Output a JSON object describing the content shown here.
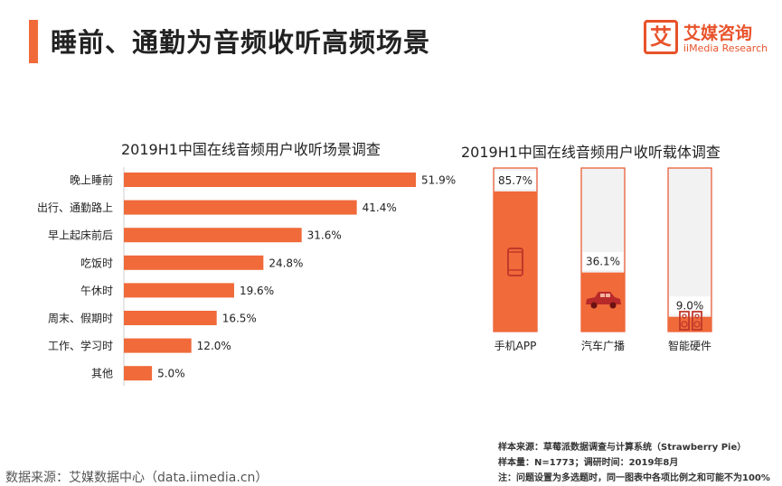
{
  "header": {
    "title": "睡前、通勤为音频收听高频场景",
    "logo_mark": "艾",
    "logo_cn": "艾媒咨询",
    "logo_en": "iiMedia Research"
  },
  "colors": {
    "accent": "#f06a3a",
    "bar_track": "#f2f2f2",
    "bar_border": "#e8522a"
  },
  "chart_data": [
    {
      "type": "bar",
      "orientation": "horizontal",
      "title": "2019H1中国在线音频用户收听场景调查",
      "categories": [
        "晚上睡前",
        "出行、通勤路上",
        "早上起床前后",
        "吃饭时",
        "午休时",
        "周末、假期时",
        "工作、学习时",
        "其他"
      ],
      "values": [
        51.9,
        41.4,
        31.6,
        24.8,
        19.6,
        16.5,
        12.0,
        5.0
      ],
      "value_labels": [
        "51.9%",
        "41.4%",
        "31.6%",
        "24.8%",
        "19.6%",
        "16.5%",
        "12.0%",
        "5.0%"
      ],
      "xlim": [
        0,
        60
      ]
    },
    {
      "type": "bar",
      "orientation": "vertical",
      "title": "2019H1中国在线音频用户收听载体调查",
      "categories": [
        "手机APP",
        "汽车广播",
        "智能硬件"
      ],
      "values": [
        85.7,
        36.1,
        9.0
      ],
      "value_labels": [
        "85.7%",
        "36.1%",
        "9.0%"
      ],
      "icons": [
        "phone-icon",
        "car-icon",
        "speaker-icon"
      ],
      "ylim": [
        0,
        100
      ]
    }
  ],
  "notes": {
    "line1": "样本来源：草莓派数据调查与计算系统（Strawberry Pie）",
    "line2": "样本量：N=1773；调研时间：2019年8月",
    "line3": "注：问题设置为多选题时，同一图表中各项比例之和可能不为100%"
  },
  "source": "数据来源：艾媒数据中心（data.iimedia.cn）"
}
